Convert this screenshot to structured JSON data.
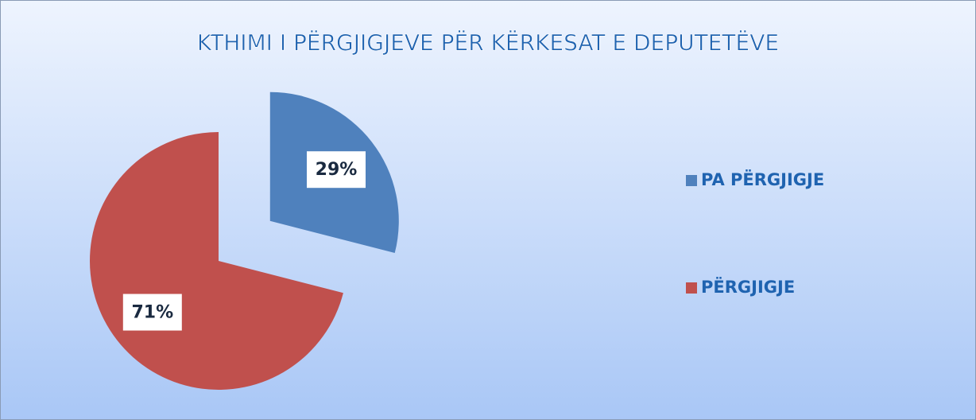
{
  "chart_data": {
    "type": "pie",
    "title": "KTHIMI I PËRGJIGJEVE PËR KËRKESAT E DEPUTETËVE",
    "categories": [
      "PA PËRGJIGJE",
      "PËRGJIGJE"
    ],
    "values": [
      29,
      71
    ],
    "value_labels": [
      "29%",
      "71%"
    ],
    "colors": [
      "#4f81bd",
      "#c0504d"
    ],
    "explode": [
      true,
      false
    ],
    "legend": "right"
  }
}
